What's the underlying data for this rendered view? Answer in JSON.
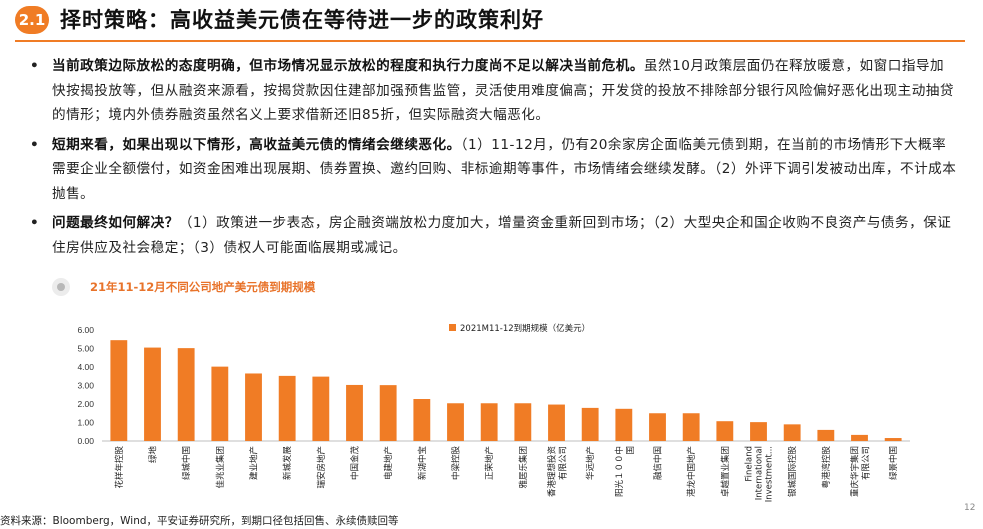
{
  "header": {
    "badge": "2.1",
    "title": "择时策略：高收益美元债在等待进一步的政策利好"
  },
  "bullets": [
    {
      "bold": "当前政策边际放松的态度明确，但市场情况显示放松的程度和执行力度尚不足以解决当前危机。",
      "text": "虽然10月政策层面仍在释放暖意，如窗口指导加快按揭投放等，但从融资来源看，按揭贷款因住建部加强预售监管，灵活使用难度偏高；开发贷的投放不排除部分银行风险偏好恶化出现主动抽贷的情形；境内外债券融资虽然名义上要求借新还旧85折，但实际融资大幅恶化。"
    },
    {
      "bold": "短期来看，如果出现以下情形，高收益美元债的情绪会继续恶化。",
      "text": "（1）11-12月，仍有20余家房企面临美元债到期，在当前的市场情形下大概率需要企业全额偿付，如资金困难出现展期、债券置换、邀约回购、非标逾期等事件，市场情绪会继续发酵。（2）外评下调引发被动出库，不计成本抛售。"
    },
    {
      "bold": "问题最终如何解决？",
      "text": "（1）政策进一步表态，房企融资端放松力度加大，增量资金重新回到市场；（2）大型央企和国企收购不良资产与债务，保证住房供应及社会稳定；（3）债权人可能面临展期或减记。"
    }
  ],
  "chart_title": "21年11-12月不同公司地产美元债到期规模",
  "chart_data": {
    "type": "bar",
    "title": "21年11-12月不同公司地产美元债到期规模",
    "series": [
      {
        "name": "2021M11-12到期规模（亿美元）",
        "values": [
          5.45,
          5.05,
          5.02,
          4.02,
          3.65,
          3.52,
          3.48,
          3.03,
          3.02,
          2.27,
          2.04,
          2.04,
          2.04,
          1.97,
          1.79,
          1.74,
          1.5,
          1.5,
          1.07,
          1.02,
          0.9,
          0.6,
          0.33,
          0.16
        ]
      }
    ],
    "categories": [
      "花样年控股",
      "绿地",
      "绿城中国",
      "佳兆业集团",
      "建业地产",
      "新城发展",
      "瑞安房地产",
      "中国金茂",
      "电建地产",
      "新湖中宝",
      "中梁控股",
      "正荣地产",
      "雅居乐集团",
      "香港理想投资有限公司",
      "华远地产",
      "阳光１００中国",
      "融信中国",
      "港龙中国地产",
      "卓越置业集团",
      "Fineland International Investment...",
      "银城国际控股",
      "粤港湾控股",
      "重庆华宇集团有限公司",
      "绿景中国"
    ],
    "y_ticks": [
      "0.00",
      "1.00",
      "2.00",
      "3.00",
      "4.00",
      "5.00",
      "6.00"
    ],
    "ylim": [
      0,
      6
    ],
    "bar_color": "#f07c25",
    "legend_position": "top-right",
    "grid": false
  },
  "source": "资料来源：Bloomberg，Wind，平安证券研究所，到期口径包括回售、永续债赎回等",
  "page_number": "12"
}
